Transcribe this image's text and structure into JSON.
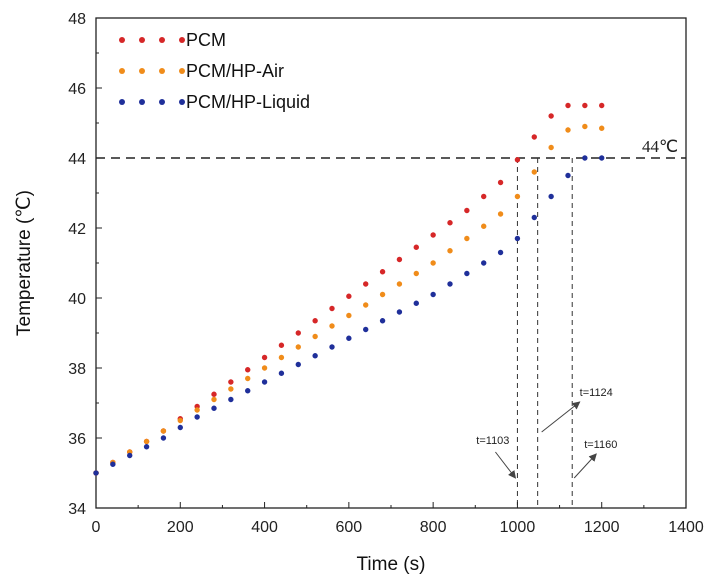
{
  "chart_data": {
    "type": "scatter",
    "xlabel": "Time (s)",
    "ylabel": "Temperature (℃)",
    "xlim": [
      0,
      1400
    ],
    "ylim": [
      34,
      48
    ],
    "xticks": [
      0,
      200,
      400,
      600,
      800,
      1000,
      1200,
      1400
    ],
    "yticks": [
      34,
      36,
      38,
      40,
      42,
      44,
      46,
      48
    ],
    "legend_position": "top-left",
    "series": [
      {
        "name": "PCM",
        "color": "#d62728",
        "x": [
          0,
          40,
          80,
          120,
          160,
          200,
          240,
          280,
          320,
          360,
          400,
          440,
          480,
          520,
          560,
          600,
          640,
          680,
          720,
          760,
          800,
          840,
          880,
          920,
          960,
          1000,
          1040,
          1080,
          1120,
          1160,
          1200
        ],
        "y": [
          35.0,
          35.3,
          35.6,
          35.9,
          36.2,
          36.55,
          36.9,
          37.25,
          37.6,
          37.95,
          38.3,
          38.65,
          39.0,
          39.35,
          39.7,
          40.05,
          40.4,
          40.75,
          41.1,
          41.45,
          41.8,
          42.15,
          42.5,
          42.9,
          43.3,
          43.95,
          44.6,
          45.2,
          45.5,
          45.5,
          45.5
        ]
      },
      {
        "name": "PCM/HP-Air",
        "color": "#f08c1a",
        "x": [
          0,
          40,
          80,
          120,
          160,
          200,
          240,
          280,
          320,
          360,
          400,
          440,
          480,
          520,
          560,
          600,
          640,
          680,
          720,
          760,
          800,
          840,
          880,
          920,
          960,
          1000,
          1040,
          1080,
          1120,
          1160,
          1200
        ],
        "y": [
          35.0,
          35.3,
          35.6,
          35.9,
          36.2,
          36.5,
          36.8,
          37.1,
          37.4,
          37.7,
          38.0,
          38.3,
          38.6,
          38.9,
          39.2,
          39.5,
          39.8,
          40.1,
          40.4,
          40.7,
          41.0,
          41.35,
          41.7,
          42.05,
          42.4,
          42.9,
          43.6,
          44.3,
          44.8,
          44.9,
          44.85
        ]
      },
      {
        "name": "PCM/HP-Liquid",
        "color": "#1f2f9a",
        "x": [
          0,
          40,
          80,
          120,
          160,
          200,
          240,
          280,
          320,
          360,
          400,
          440,
          480,
          520,
          560,
          600,
          640,
          680,
          720,
          760,
          800,
          840,
          880,
          920,
          960,
          1000,
          1040,
          1080,
          1120,
          1160,
          1200
        ],
        "y": [
          35.0,
          35.25,
          35.5,
          35.75,
          36.0,
          36.3,
          36.6,
          36.85,
          37.1,
          37.35,
          37.6,
          37.85,
          38.1,
          38.35,
          38.6,
          38.85,
          39.1,
          39.35,
          39.6,
          39.85,
          40.1,
          40.4,
          40.7,
          41.0,
          41.3,
          41.7,
          42.3,
          42.9,
          43.5,
          44.0,
          44.0
        ]
      }
    ],
    "reference_line": {
      "y": 44,
      "label": "44℃"
    },
    "annotations": [
      {
        "text": "t=1103",
        "x": 1000
      },
      {
        "text": "t=1124",
        "x": 1048
      },
      {
        "text": "t=1160",
        "x": 1130
      }
    ]
  }
}
